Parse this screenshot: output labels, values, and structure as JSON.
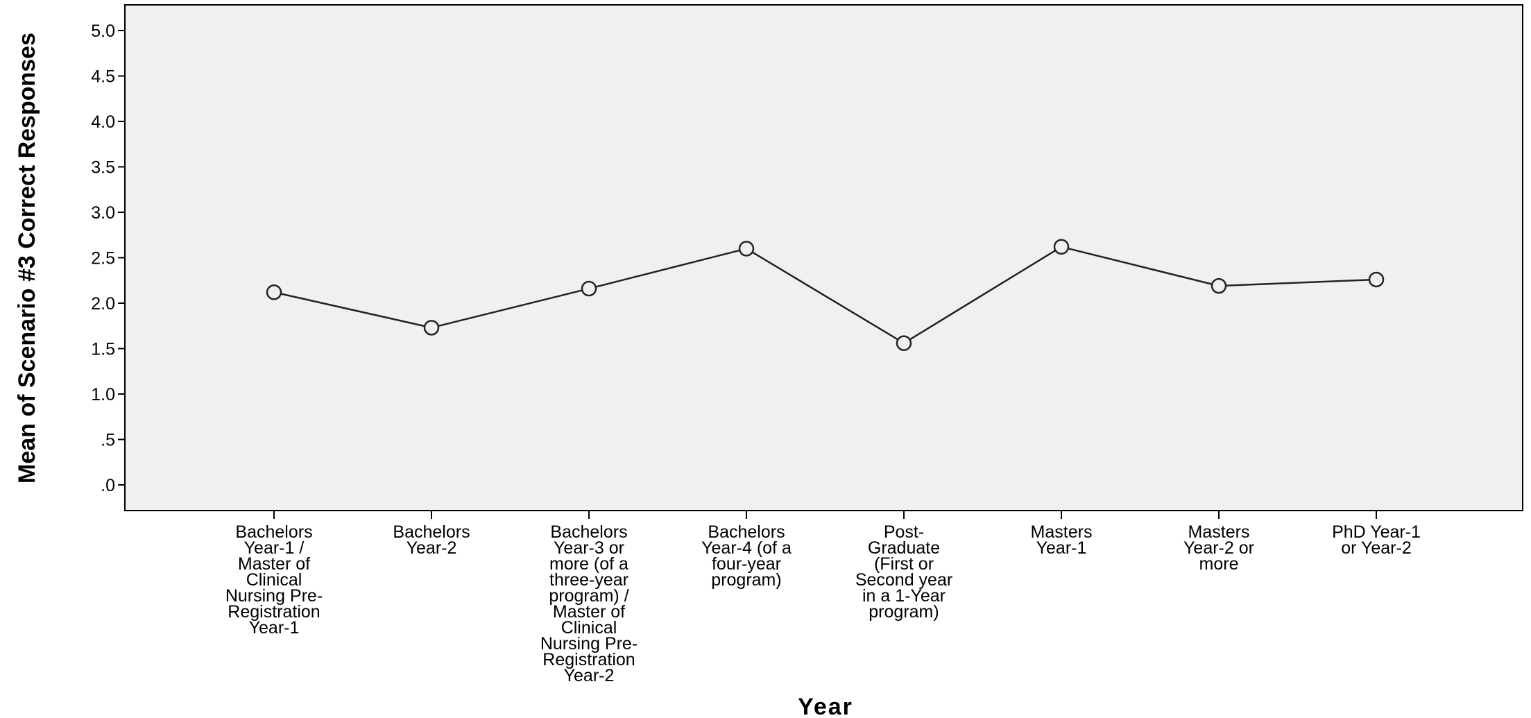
{
  "chart_data": {
    "type": "line",
    "title": "",
    "xlabel": "Year",
    "ylabel": "Mean of Scenario #3 Correct Responses",
    "ylim": [
      0,
      5.0
    ],
    "yticks": [
      {
        "value": 0.0,
        "label": ".0"
      },
      {
        "value": 0.5,
        "label": ".5"
      },
      {
        "value": 1.0,
        "label": "1.0"
      },
      {
        "value": 1.5,
        "label": "1.5"
      },
      {
        "value": 2.0,
        "label": "2.0"
      },
      {
        "value": 2.5,
        "label": "2.5"
      },
      {
        "value": 3.0,
        "label": "3.0"
      },
      {
        "value": 3.5,
        "label": "3.5"
      },
      {
        "value": 4.0,
        "label": "4.0"
      },
      {
        "value": 4.5,
        "label": "4.5"
      },
      {
        "value": 5.0,
        "label": "5.0"
      }
    ],
    "categories": [
      "Bachelors Year-1 / Master of Clinical Nursing Pre-Registration Year-1",
      "Bachelors Year-2",
      "Bachelors Year-3 or more (of a three-year program) / Master of Clinical Nursing Pre-Registration Year-2",
      "Bachelors Year-4 (of a four-year program)",
      "Post-Graduate (First or Second year in a 1-Year program)",
      "Masters Year-1",
      "Masters Year-2 or more",
      "PhD Year-1 or Year-2"
    ],
    "category_label_lines": [
      [
        "Bachelors",
        "Year-1 /",
        "Master of",
        "Clinical",
        "Nursing Pre-",
        "Registration",
        "Year-1"
      ],
      [
        "Bachelors",
        "Year-2"
      ],
      [
        "Bachelors",
        "Year-3 or",
        "more (of a",
        "three-year",
        "program) /",
        "Master of",
        "Clinical",
        "Nursing Pre-",
        "Registration",
        "Year-2"
      ],
      [
        "Bachelors",
        "Year-4 (of a",
        "four-year",
        "program)"
      ],
      [
        "Post-",
        "Graduate",
        "(First or",
        "Second year",
        "in a 1-Year",
        "program)"
      ],
      [
        "Masters",
        "Year-1"
      ],
      [
        "Masters",
        "Year-2 or",
        "more"
      ],
      [
        "PhD Year-1",
        "or Year-2"
      ]
    ],
    "series": [
      {
        "values": [
          2.12,
          1.73,
          2.16,
          2.6,
          1.56,
          2.62,
          2.19,
          2.26
        ]
      }
    ],
    "grid": false,
    "legend": "none",
    "colors": {
      "plot_background": "#f0f0f0",
      "line": "#222222",
      "marker_fill": "#f0f0f0",
      "axis": "#000000"
    }
  }
}
